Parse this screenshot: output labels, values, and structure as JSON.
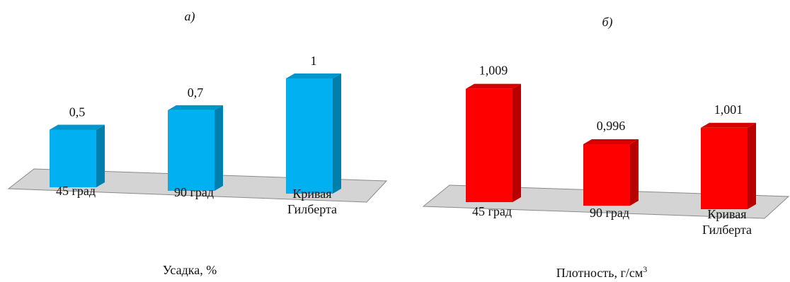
{
  "chart_data": [
    {
      "type": "bar",
      "panel_label": "а)",
      "xlabel": "Усадка, %",
      "categories": [
        [
          "45 град"
        ],
        [
          "90 град"
        ],
        [
          "Кривая",
          "Гилберта"
        ]
      ],
      "values": [
        0.5,
        0.7,
        1
      ],
      "value_labels": [
        "0,5",
        "0,7",
        "1"
      ],
      "ylim": [
        0,
        1
      ],
      "color": "#00B0F0",
      "grid": false,
      "legend": "none"
    },
    {
      "type": "bar",
      "panel_label": "б)",
      "xlabel": "Плотность, г/см",
      "xlabel_sup": "3",
      "categories": [
        [
          "45 град"
        ],
        [
          "90 град"
        ],
        [
          "Кривая",
          "Гилберта"
        ]
      ],
      "values": [
        1.009,
        0.996,
        1.001
      ],
      "value_labels": [
        "1,009",
        "0,996",
        "1,001"
      ],
      "ylim": [
        0.99,
        1.01
      ],
      "color": "#FF0000",
      "grid": false,
      "legend": "none"
    }
  ]
}
